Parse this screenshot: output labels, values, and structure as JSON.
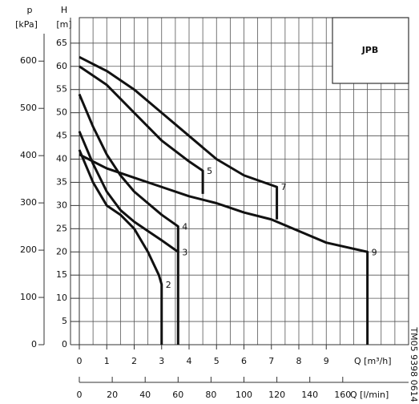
{
  "chart_data": {
    "type": "line",
    "badge": "JPB",
    "y_label_top": "H",
    "y_label_unit": "[m]",
    "y2_label_top": "p",
    "y2_label_unit": "[kPa]",
    "x_label": "Q [m³/h]",
    "x2_label": "Q [l/min]",
    "code": "TM05 9398 0614",
    "xlim": [
      0,
      12
    ],
    "xticks": [
      0,
      1,
      2,
      3,
      4,
      5,
      6,
      7,
      8,
      9
    ],
    "xminor_ticks": [
      0,
      0.5,
      1,
      1.5,
      2,
      2.5,
      3,
      3.5,
      4,
      4.5,
      5,
      5.5,
      6,
      6.5,
      7,
      7.5,
      8,
      8.5,
      9,
      9.5,
      10,
      10.5,
      11,
      11.5,
      12
    ],
    "x2lim": [
      0,
      200
    ],
    "x2ticks": [
      0,
      20,
      40,
      60,
      80,
      100,
      120,
      140,
      160
    ],
    "ylim": [
      0,
      70.5
    ],
    "yticks": [
      0,
      5,
      10,
      15,
      20,
      25,
      30,
      35,
      40,
      45,
      50,
      55,
      60,
      65
    ],
    "y2lim": [
      0,
      692
    ],
    "y2ticks": [
      0,
      100,
      200,
      300,
      400,
      500,
      600
    ],
    "grid": true,
    "series": [
      {
        "name": "2",
        "color": "#111111",
        "x": [
          0,
          0.5,
          1,
          1.5,
          2,
          2.5,
          2.9,
          3,
          3
        ],
        "values": [
          42,
          35,
          30,
          28,
          25,
          20,
          15,
          13,
          0
        ]
      },
      {
        "name": "3",
        "color": "#111111",
        "x": [
          0,
          0.5,
          1,
          1.5,
          2,
          2.5,
          3,
          3.6,
          3.6
        ],
        "values": [
          46,
          39,
          33,
          29,
          26.5,
          24.5,
          22.5,
          20,
          0
        ]
      },
      {
        "name": "4",
        "color": "#111111",
        "x": [
          0,
          0.5,
          1,
          1.5,
          2,
          2.5,
          3,
          3.6,
          3.6
        ],
        "values": [
          54,
          47,
          41,
          36.5,
          33,
          30.5,
          28,
          25.5,
          20
        ]
      },
      {
        "name": "5",
        "color": "#111111",
        "x": [
          0,
          1,
          2,
          3,
          4,
          4.5,
          4.5
        ],
        "values": [
          60,
          56,
          50,
          44,
          39.5,
          37.5,
          32.5
        ]
      },
      {
        "name": "7",
        "color": "#111111",
        "x": [
          0,
          1,
          2,
          3,
          4,
          5,
          6,
          7.2,
          7.2
        ],
        "values": [
          62,
          59,
          55,
          50,
          45,
          40,
          36.5,
          34,
          27
        ]
      },
      {
        "name": "9",
        "color": "#111111",
        "x": [
          0,
          1,
          2,
          3,
          4,
          5,
          6,
          7,
          8,
          9,
          10.5,
          10.5
        ],
        "values": [
          41,
          38,
          36,
          34,
          32,
          30.5,
          28.5,
          27,
          24.5,
          22,
          20,
          0
        ]
      }
    ]
  }
}
